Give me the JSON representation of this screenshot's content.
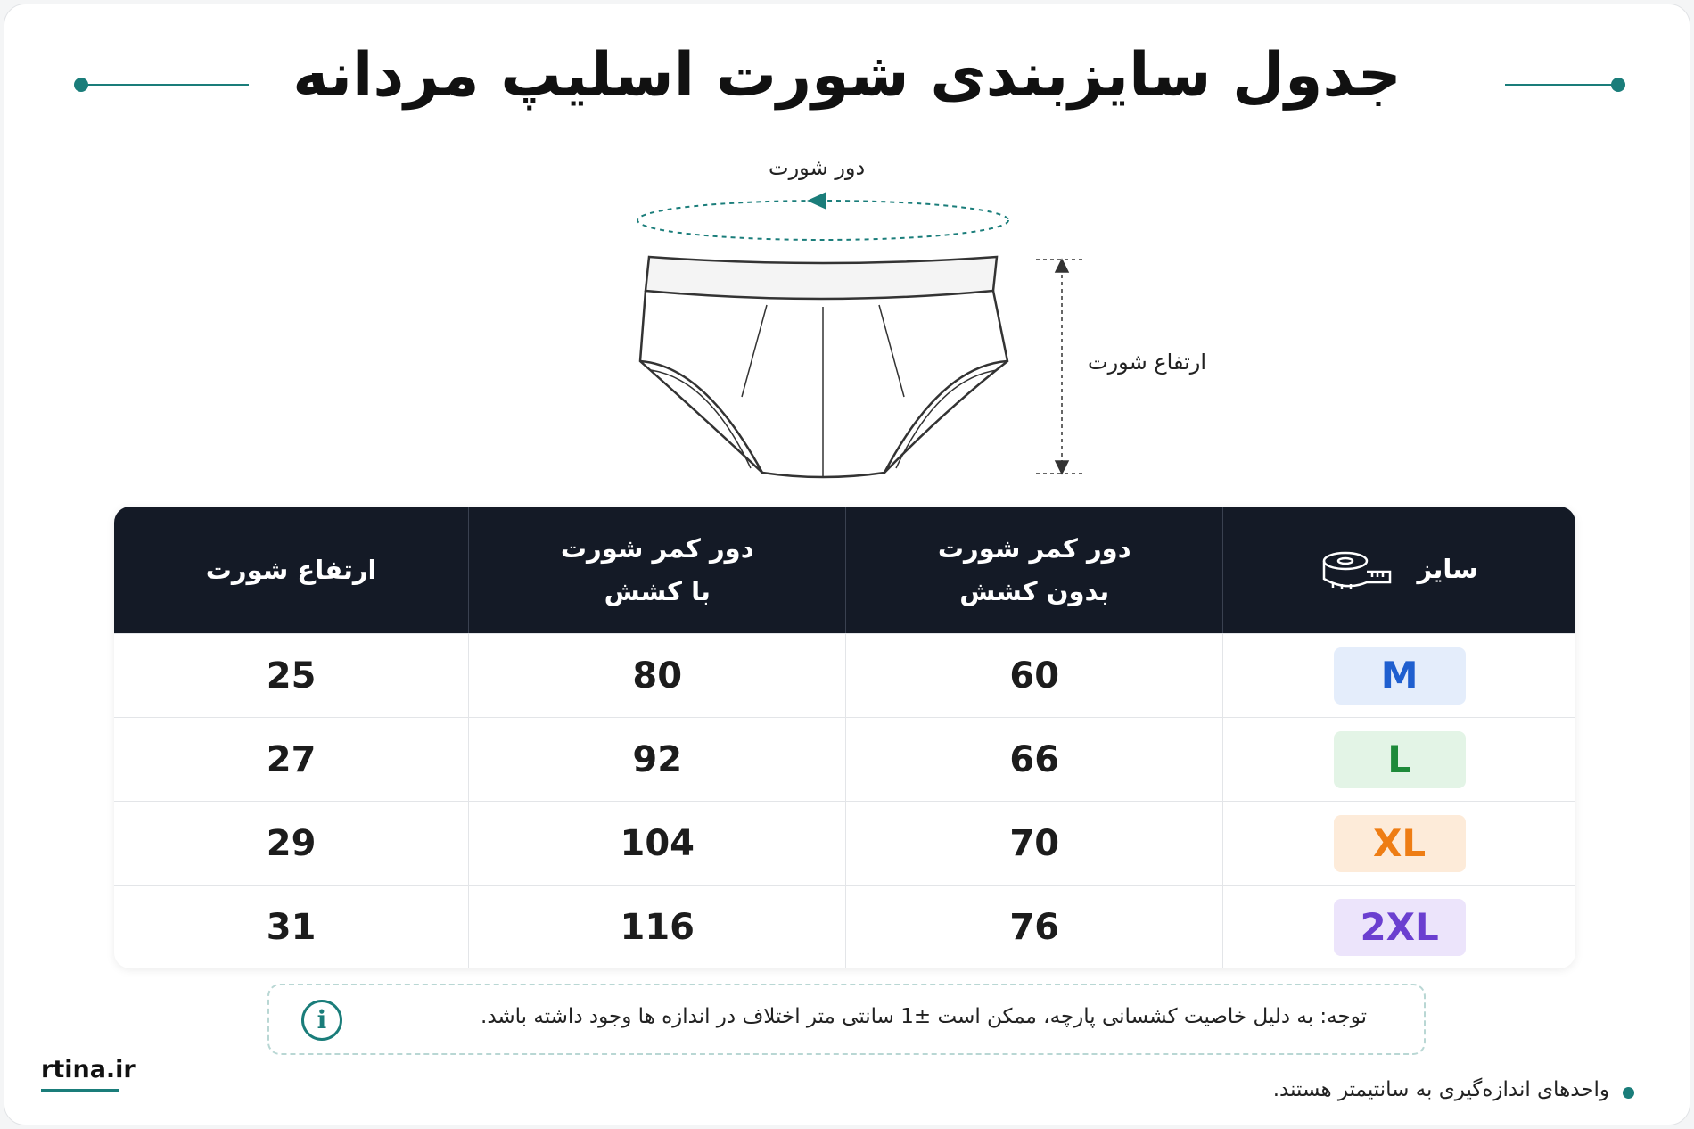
{
  "title": "جدول سایزبندی شورت اسلیپ مردانه",
  "diagram": {
    "circumference_label": "دور شورت",
    "height_label": "ارتفاع شورت"
  },
  "table": {
    "headers": [
      [
        "سایز"
      ],
      [
        "دور کمر شورت",
        "بدون کشش"
      ],
      [
        "دور کمر شورت",
        "با کشش"
      ],
      [
        "ارتفاع شورت"
      ]
    ],
    "rows": [
      [
        "M",
        60,
        80,
        25
      ],
      [
        "L",
        66,
        92,
        27
      ],
      [
        "XL",
        70,
        104,
        29
      ],
      [
        "2XL",
        76,
        116,
        31
      ]
    ]
  },
  "note": "توجه: به دلیل خاصیت کشسانی پارچه، ممکن است ±1 سانتی متر اختلاف در اندازه ها وجود داشته باشد.",
  "brand": "rtina.ir",
  "footer": "واحدهای اندازه‌گیری به سانتیمتر هستند."
}
